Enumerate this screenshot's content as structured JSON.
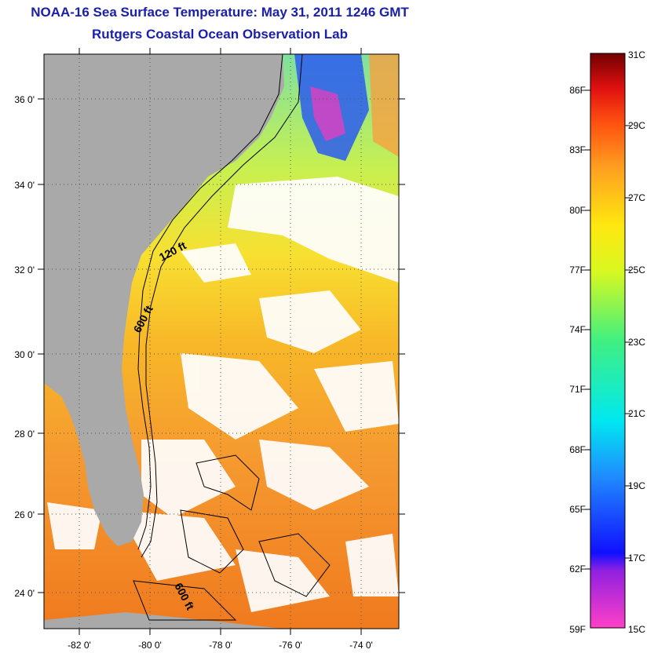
{
  "title": "NOAA-16 Sea Surface Temperature:  May 31, 2011 1246 GMT",
  "subtitle": "Rutgers Coastal Ocean Observation Lab",
  "latitude_labels": [
    "36 0'",
    "34 0'",
    "32 0'",
    "30 0'",
    "28 0'",
    "26 0'",
    "24 0'"
  ],
  "longitude_labels": [
    "-82 0'",
    "-80 0'",
    "-78 0'",
    "-76 0'",
    "-74 0'"
  ],
  "contour_labels": [
    "120 ft",
    "600 ft",
    "600 ft"
  ],
  "colorbar": {
    "fahrenheit": [
      "86F",
      "83F",
      "80F",
      "77F",
      "74F",
      "71F",
      "68F",
      "65F",
      "62F",
      "59F"
    ],
    "celsius": [
      "31C",
      "29C",
      "27C",
      "25C",
      "23C",
      "21C",
      "19C",
      "17C",
      "15C"
    ]
  },
  "colors": {
    "title": "#1a20a8",
    "land": "#a9a9a9",
    "warm": "#f07a1e",
    "mid": "#f5c820",
    "cool": "#3de0b0",
    "cold": "#2030e0"
  }
}
